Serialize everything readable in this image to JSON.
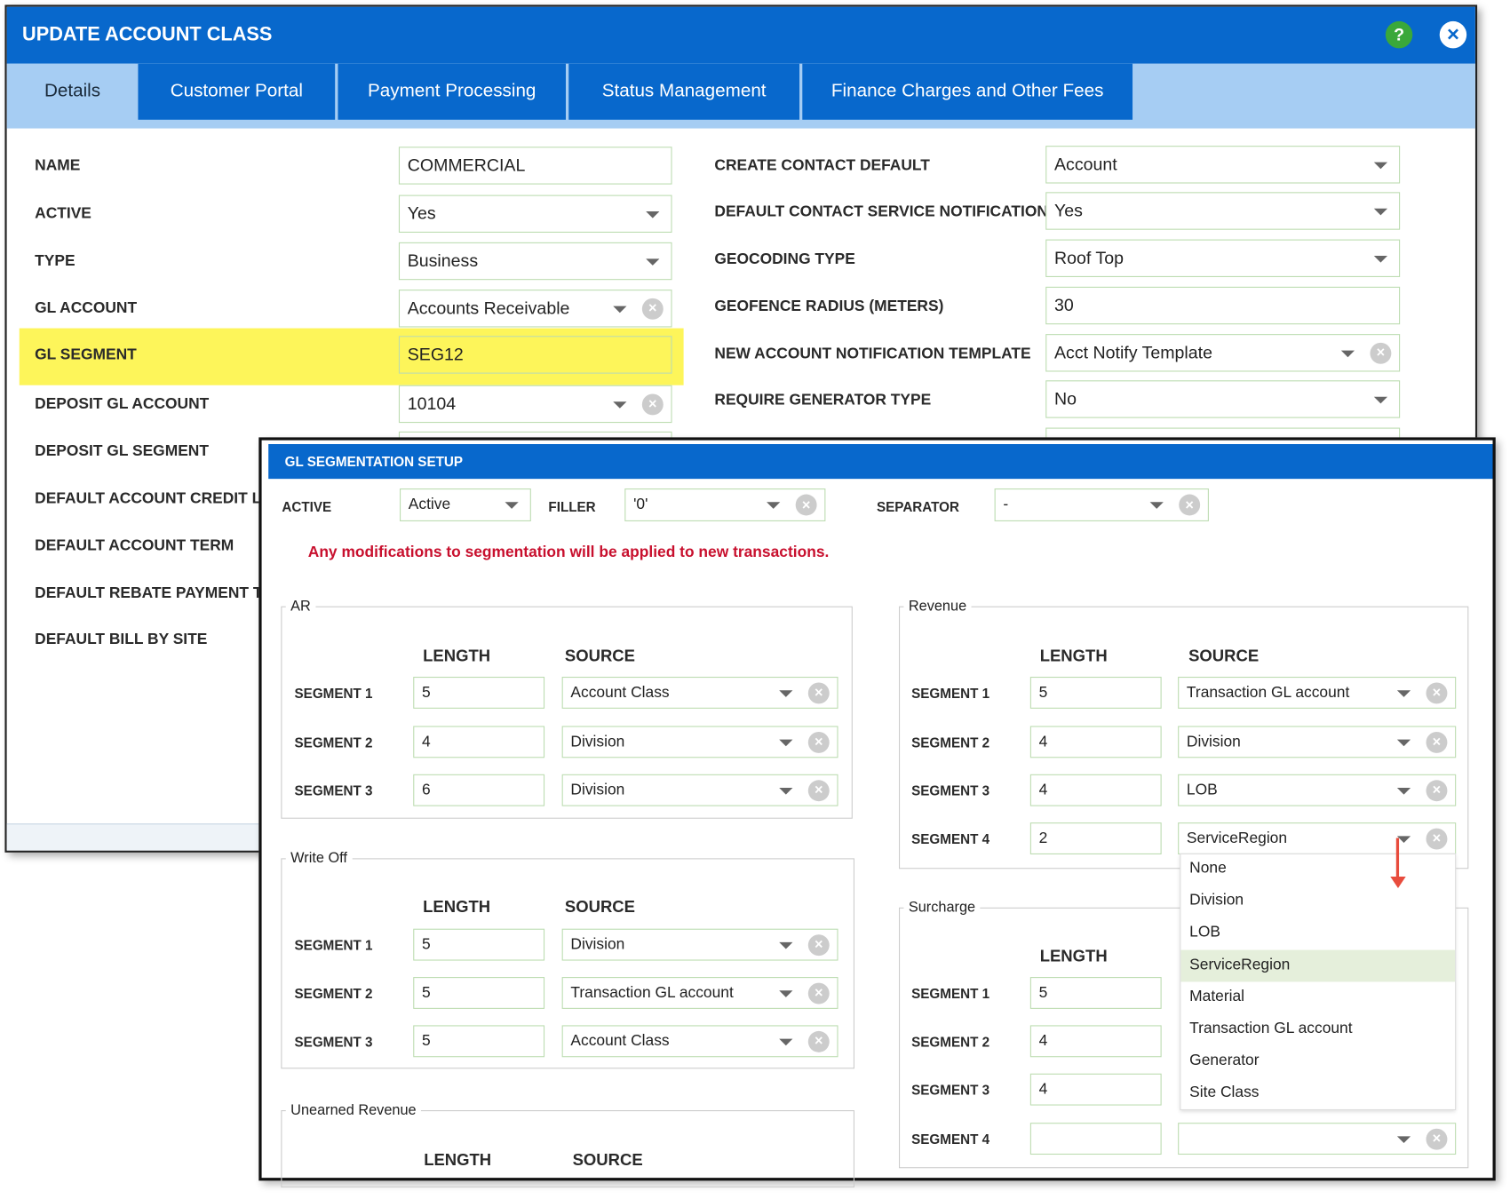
{
  "dialog": {
    "title": "UPDATE ACCOUNT CLASS",
    "tabs": [
      "Details",
      "Customer Portal",
      "Payment Processing",
      "Status Management",
      "Finance Charges and Other Fees"
    ],
    "left_fields": [
      {
        "label": "NAME",
        "value": "COMMERCIAL"
      },
      {
        "label": "ACTIVE",
        "value": "Yes"
      },
      {
        "label": "TYPE",
        "value": "Business"
      },
      {
        "label": "GL ACCOUNT",
        "value": "Accounts Receivable"
      },
      {
        "label": "GL SEGMENT",
        "value": "SEG12"
      },
      {
        "label": "DEPOSIT GL ACCOUNT",
        "value": "10104"
      },
      {
        "label": "DEPOSIT GL SEGMENT"
      },
      {
        "label": "DEFAULT ACCOUNT CREDIT LI"
      },
      {
        "label": "DEFAULT ACCOUNT TERM"
      },
      {
        "label": "DEFAULT REBATE PAYMENT T"
      },
      {
        "label": "DEFAULT BILL BY SITE"
      }
    ],
    "right_fields": [
      {
        "label": "CREATE CONTACT DEFAULT",
        "value": "Account"
      },
      {
        "label": "DEFAULT CONTACT SERVICE NOTIFICATION",
        "value": "Yes"
      },
      {
        "label": "GEOCODING TYPE",
        "value": "Roof Top"
      },
      {
        "label": "GEOFENCE RADIUS (METERS)",
        "value": 30
      },
      {
        "label": "NEW ACCOUNT NOTIFICATION TEMPLATE",
        "value": "Acct Notify Template"
      },
      {
        "label": "REQUIRE GENERATOR TYPE",
        "value": "No"
      }
    ]
  },
  "gl_segmentation": {
    "title": "GL SEGMENTATION SETUP",
    "active": {
      "label": "ACTIVE",
      "value": "Active"
    },
    "filler": {
      "label": "FILLER",
      "value": "'0'"
    },
    "separator": {
      "label": "SEPARATOR",
      "value": "-"
    },
    "warning": "Any modifications to segmentation will be applied to new transactions.",
    "groups": [
      {
        "name": "AR",
        "length_header": "LENGTH",
        "source_header": "SOURCE",
        "segments": [
          {
            "label": "SEGMENT 1",
            "length": 5,
            "source": "Account Class"
          },
          {
            "label": "SEGMENT 2",
            "length": 4,
            "source": "Division"
          },
          {
            "label": "SEGMENT 3",
            "length": 6,
            "source": "Division"
          }
        ]
      },
      {
        "name": "Write Off",
        "length_header": "LENGTH",
        "source_header": "SOURCE",
        "segments": [
          {
            "label": "SEGMENT 1",
            "length": 5,
            "source": "Division"
          },
          {
            "label": "SEGMENT 2",
            "length": 5,
            "source": "Transaction GL account"
          },
          {
            "label": "SEGMENT 3",
            "length": 5,
            "source": "Account Class"
          }
        ]
      },
      {
        "name": "Unearned Revenue",
        "length_header": "LENGTH",
        "source_header": "SOURCE",
        "segments": []
      },
      {
        "name": "Revenue",
        "length_header": "LENGTH",
        "source_header": "SOURCE",
        "segments": [
          {
            "label": "SEGMENT 1",
            "length": 5,
            "source": "Transaction GL account"
          },
          {
            "label": "SEGMENT 2",
            "length": 4,
            "source": "Division"
          },
          {
            "label": "SEGMENT 3",
            "length": 4,
            "source": "LOB"
          },
          {
            "label": "SEGMENT 4",
            "length": 2,
            "source": "ServiceRegion"
          }
        ]
      },
      {
        "name": "Surcharge",
        "length_header": "LENGTH",
        "segments": [
          {
            "label": "SEGMENT 1",
            "length": 5
          },
          {
            "label": "SEGMENT 2",
            "length": 4
          },
          {
            "label": "SEGMENT 3",
            "length": 4
          },
          {
            "label": "SEGMENT 4"
          }
        ]
      }
    ],
    "dropdown_options": [
      "None",
      "Division",
      "LOB",
      "ServiceRegion",
      "Material",
      "Transaction GL account",
      "Generator",
      "Site Class"
    ]
  }
}
